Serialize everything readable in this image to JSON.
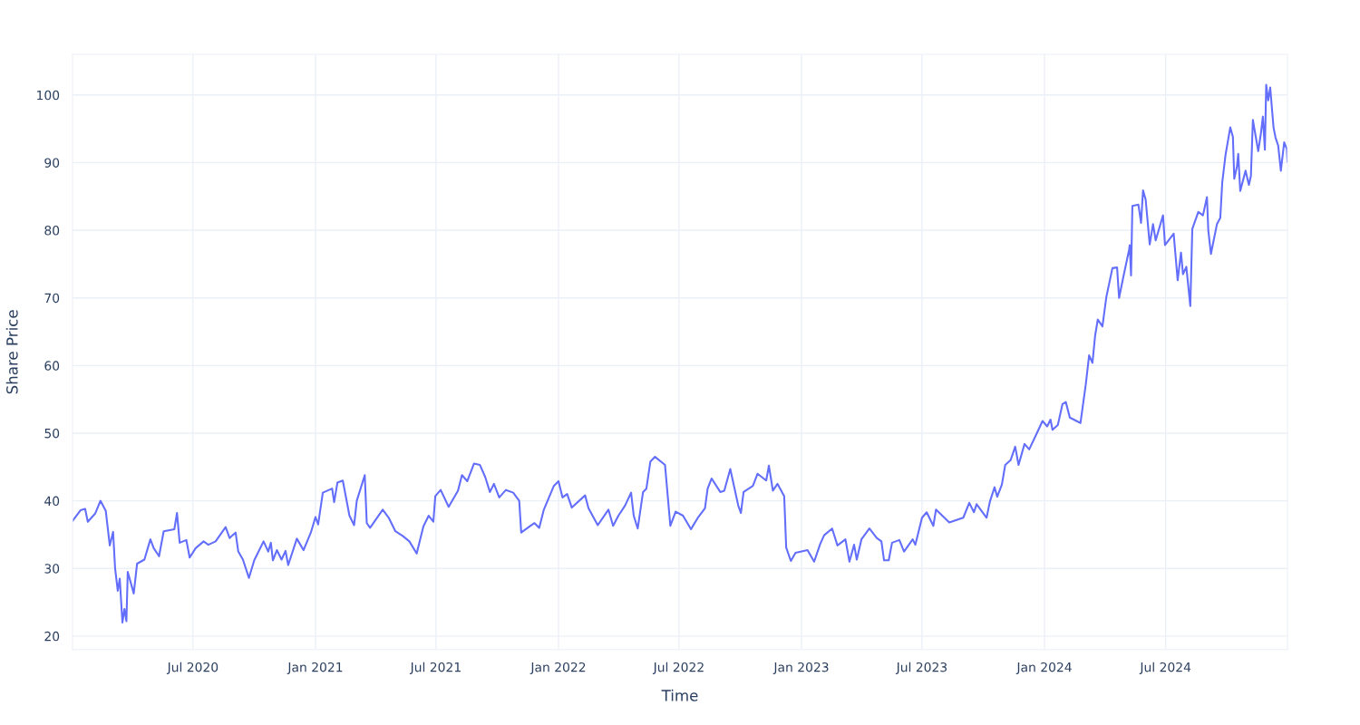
{
  "chart_data": {
    "type": "line",
    "xlabel": "Time",
    "ylabel": "Share Price",
    "xlim": [
      "2020-01-02",
      "2024-12-31"
    ],
    "ylim": [
      18,
      106
    ],
    "xticks": [
      {
        "value": "2020-07-01",
        "label": "Jul 2020"
      },
      {
        "value": "2021-01-01",
        "label": "Jan 2021"
      },
      {
        "value": "2021-07-01",
        "label": "Jul 2021"
      },
      {
        "value": "2022-01-01",
        "label": "Jan 2022"
      },
      {
        "value": "2022-07-01",
        "label": "Jul 2022"
      },
      {
        "value": "2023-01-01",
        "label": "Jan 2023"
      },
      {
        "value": "2023-07-01",
        "label": "Jul 2023"
      },
      {
        "value": "2024-01-01",
        "label": "Jan 2024"
      },
      {
        "value": "2024-07-01",
        "label": "Jul 2024"
      }
    ],
    "yticks": [
      20,
      30,
      40,
      50,
      60,
      70,
      80,
      90,
      100
    ],
    "grid": true,
    "legend": false,
    "marker": "none",
    "line_style": "solid",
    "series": [
      {
        "color": "#636efa",
        "x": [
          "2020-01-02",
          "2020-01-14",
          "2020-01-21",
          "2020-01-25",
          "2020-02-05",
          "2020-02-13",
          "2020-02-21",
          "2020-02-27",
          "2020-03-03",
          "2020-03-06",
          "2020-03-10",
          "2020-03-13",
          "2020-03-17",
          "2020-03-20",
          "2020-03-23",
          "2020-03-25",
          "2020-04-03",
          "2020-04-08",
          "2020-04-19",
          "2020-04-28",
          "2020-05-03",
          "2020-05-11",
          "2020-05-18",
          "2020-06-03",
          "2020-06-07",
          "2020-06-11",
          "2020-06-21",
          "2020-06-26",
          "2020-07-05",
          "2020-07-17",
          "2020-07-24",
          "2020-08-04",
          "2020-08-19",
          "2020-08-25",
          "2020-09-03",
          "2020-09-07",
          "2020-09-14",
          "2020-09-23",
          "2020-10-01",
          "2020-10-15",
          "2020-10-22",
          "2020-10-26",
          "2020-10-29",
          "2020-11-04",
          "2020-11-11",
          "2020-11-17",
          "2020-11-21",
          "2020-12-04",
          "2020-12-14",
          "2020-12-25",
          "2021-01-01",
          "2021-01-05",
          "2021-01-12",
          "2021-01-26",
          "2021-01-29",
          "2021-02-03",
          "2021-02-11",
          "2021-02-21",
          "2021-02-28",
          "2021-03-04",
          "2021-03-16",
          "2021-03-19",
          "2021-03-24",
          "2021-04-12",
          "2021-04-21",
          "2021-05-01",
          "2021-05-12",
          "2021-05-22",
          "2021-06-02",
          "2021-06-12",
          "2021-06-20",
          "2021-06-27",
          "2021-06-30",
          "2021-07-08",
          "2021-07-20",
          "2021-08-03",
          "2021-08-09",
          "2021-08-17",
          "2021-08-27",
          "2021-09-05",
          "2021-09-13",
          "2021-09-20",
          "2021-09-26",
          "2021-10-04",
          "2021-10-14",
          "2021-10-25",
          "2021-11-03",
          "2021-11-06",
          "2021-11-20",
          "2021-11-26",
          "2021-12-03",
          "2021-12-10",
          "2021-12-25",
          "2022-01-01",
          "2022-01-07",
          "2022-01-14",
          "2022-01-21",
          "2022-02-10",
          "2022-02-15",
          "2022-03-01",
          "2022-03-17",
          "2022-03-24",
          "2022-04-01",
          "2022-04-11",
          "2022-04-20",
          "2022-04-24",
          "2022-04-30",
          "2022-05-08",
          "2022-05-13",
          "2022-05-19",
          "2022-05-26",
          "2022-06-10",
          "2022-06-18",
          "2022-06-26",
          "2022-07-07",
          "2022-07-19",
          "2022-07-30",
          "2022-08-09",
          "2022-08-13",
          "2022-08-19",
          "2022-09-01",
          "2022-09-07",
          "2022-09-16",
          "2022-09-28",
          "2022-10-02",
          "2022-10-06",
          "2022-10-20",
          "2022-10-27",
          "2022-11-09",
          "2022-11-13",
          "2022-11-19",
          "2022-11-26",
          "2022-12-06",
          "2022-12-09",
          "2022-12-16",
          "2022-12-23",
          "2023-01-10",
          "2023-01-20",
          "2023-01-29",
          "2023-02-04",
          "2023-02-16",
          "2023-02-24",
          "2023-03-08",
          "2023-03-14",
          "2023-03-21",
          "2023-03-25",
          "2023-04-01",
          "2023-04-13",
          "2023-04-24",
          "2023-05-01",
          "2023-05-05",
          "2023-05-12",
          "2023-05-17",
          "2023-05-28",
          "2023-06-04",
          "2023-06-17",
          "2023-06-21",
          "2023-07-01",
          "2023-07-08",
          "2023-07-18",
          "2023-07-22",
          "2023-08-11",
          "2023-09-01",
          "2023-09-10",
          "2023-09-17",
          "2023-09-21",
          "2023-10-06",
          "2023-10-11",
          "2023-10-18",
          "2023-10-22",
          "2023-10-29",
          "2023-11-03",
          "2023-11-11",
          "2023-11-18",
          "2023-11-23",
          "2023-12-02",
          "2023-12-09",
          "2023-12-21",
          "2023-12-29",
          "2024-01-05",
          "2024-01-10",
          "2024-01-13",
          "2024-01-21",
          "2024-01-28",
          "2024-02-02",
          "2024-02-08",
          "2024-02-24",
          "2024-03-03",
          "2024-03-08",
          "2024-03-13",
          "2024-03-17",
          "2024-03-21",
          "2024-03-28",
          "2024-04-03",
          "2024-04-12",
          "2024-04-19",
          "2024-04-22",
          "2024-04-28",
          "2024-05-07",
          "2024-05-08",
          "2024-05-10",
          "2024-05-12",
          "2024-05-21",
          "2024-05-25",
          "2024-05-28",
          "2024-06-01",
          "2024-06-07",
          "2024-06-12",
          "2024-06-16",
          "2024-06-27",
          "2024-06-30",
          "2024-07-13",
          "2024-07-19",
          "2024-07-24",
          "2024-07-27",
          "2024-08-01",
          "2024-08-07",
          "2024-08-10",
          "2024-08-19",
          "2024-08-26",
          "2024-09-01",
          "2024-09-03",
          "2024-09-07",
          "2024-09-16",
          "2024-09-21",
          "2024-09-24",
          "2024-09-29",
          "2024-10-06",
          "2024-10-10",
          "2024-10-12",
          "2024-10-16",
          "2024-10-18",
          "2024-10-21",
          "2024-10-29",
          "2024-11-03",
          "2024-11-06",
          "2024-11-09",
          "2024-11-17",
          "2024-11-21",
          "2024-11-24",
          "2024-11-27",
          "2024-11-29",
          "2024-12-02",
          "2024-12-05",
          "2024-12-10",
          "2024-12-13",
          "2024-12-17",
          "2024-12-21",
          "2024-12-26",
          "2024-12-30",
          "2024-12-31"
        ],
        "values": [
          37.0,
          38.6,
          38.8,
          36.9,
          38.1,
          40.0,
          38.5,
          33.4,
          35.4,
          30.0,
          26.7,
          28.5,
          22.0,
          24.0,
          22.2,
          29.5,
          26.3,
          30.7,
          31.3,
          34.3,
          33.0,
          31.8,
          35.5,
          35.8,
          38.2,
          33.8,
          34.2,
          31.6,
          33.0,
          34.0,
          33.5,
          34.0,
          36.1,
          34.5,
          35.3,
          32.5,
          31.3,
          28.6,
          31.2,
          34.0,
          32.5,
          33.8,
          31.2,
          32.7,
          31.3,
          32.6,
          30.5,
          34.4,
          32.7,
          35.3,
          37.6,
          36.5,
          41.2,
          41.8,
          39.8,
          42.7,
          43.0,
          37.8,
          36.4,
          40.0,
          43.8,
          36.7,
          36.0,
          38.7,
          37.5,
          35.5,
          34.8,
          34.0,
          32.2,
          36.2,
          37.8,
          36.9,
          40.7,
          41.6,
          39.1,
          41.5,
          43.8,
          42.9,
          45.5,
          45.3,
          43.5,
          41.3,
          42.5,
          40.5,
          41.6,
          41.2,
          40.0,
          35.3,
          36.3,
          36.7,
          36.0,
          38.7,
          42.2,
          42.9,
          40.5,
          41.0,
          39.0,
          40.8,
          38.9,
          36.4,
          38.7,
          36.3,
          37.8,
          39.3,
          41.2,
          37.8,
          35.9,
          41.3,
          41.8,
          45.8,
          46.5,
          45.3,
          36.3,
          38.4,
          37.8,
          35.8,
          37.6,
          38.9,
          41.8,
          43.3,
          41.3,
          41.5,
          44.7,
          39.3,
          38.2,
          41.3,
          42.2,
          44.0,
          43.0,
          45.2,
          41.5,
          42.5,
          40.7,
          33.1,
          31.1,
          32.3,
          32.7,
          31.0,
          33.6,
          34.9,
          35.9,
          33.4,
          34.3,
          31.0,
          33.5,
          31.3,
          34.3,
          35.9,
          34.5,
          34.0,
          31.2,
          31.2,
          33.8,
          34.2,
          32.5,
          34.3,
          33.5,
          37.5,
          38.3,
          36.3,
          38.7,
          36.8,
          37.5,
          39.7,
          38.3,
          39.5,
          37.5,
          39.9,
          42.0,
          40.6,
          42.4,
          45.3,
          46.0,
          48.0,
          45.3,
          48.4,
          47.6,
          50.1,
          51.8,
          51.0,
          52.0,
          50.5,
          51.2,
          54.3,
          54.6,
          52.3,
          51.5,
          57.2,
          61.5,
          60.4,
          64.4,
          66.8,
          65.8,
          70.2,
          74.4,
          74.5,
          70.0,
          72.9,
          77.1,
          77.8,
          73.3,
          83.6,
          83.8,
          81.1,
          85.9,
          84.5,
          77.9,
          80.9,
          78.5,
          82.2,
          77.8,
          79.5,
          72.6,
          76.7,
          73.5,
          74.6,
          68.8,
          80.2,
          82.7,
          82.2,
          84.9,
          80.0,
          76.5,
          80.9,
          81.8,
          87.1,
          91.2,
          95.2,
          93.8,
          87.6,
          89.4,
          91.3,
          85.8,
          88.8,
          86.7,
          88.0,
          96.3,
          91.7,
          94.3,
          96.8,
          91.9,
          101.5,
          99.2,
          101.1,
          95.2,
          93.7,
          92.5,
          88.8,
          93.0,
          92.0,
          90.1
        ]
      }
    ]
  }
}
